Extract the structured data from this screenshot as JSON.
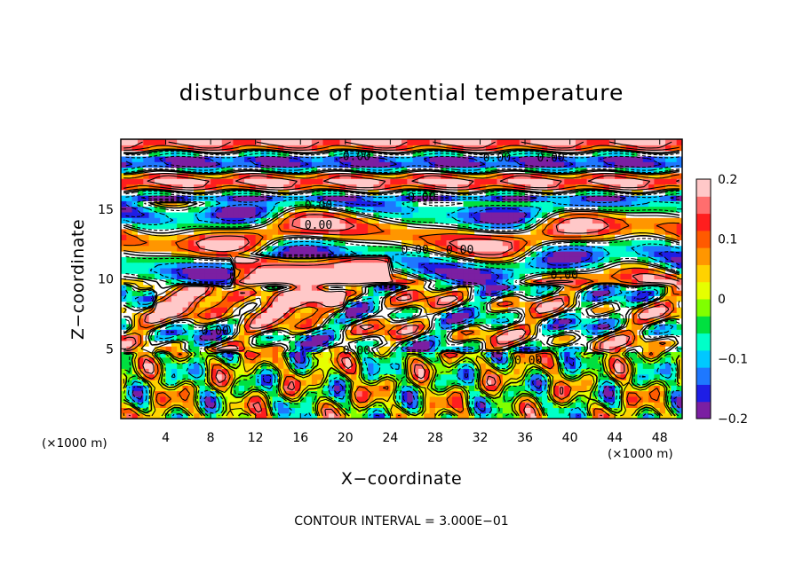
{
  "chart_data": {
    "type": "heatmap",
    "title": "disturbunce of potential temperature",
    "xlabel": "X−coordinate",
    "ylabel": "Z−coordinate",
    "x_unit": "(×1000 m)",
    "x_unit_right": "(×1000 m)",
    "xlim": [
      0,
      50
    ],
    "ylim": [
      0,
      20
    ],
    "x_ticks": [
      4,
      8,
      12,
      16,
      20,
      24,
      28,
      32,
      36,
      40,
      44,
      48
    ],
    "x_tick_labels": [
      "4",
      "8",
      "12",
      "16",
      "20",
      "24",
      "28",
      "32",
      "36",
      "40",
      "44",
      "48"
    ],
    "y_ticks": [
      5,
      10,
      15
    ],
    "y_tick_labels": [
      "5",
      "10",
      "15"
    ],
    "colorbar": {
      "min": -0.2,
      "max": 0.2,
      "ticks": [
        0.2,
        0.1,
        0,
        -0.1,
        -0.2
      ],
      "tick_labels": [
        "0.2",
        "0.1",
        "0",
        "−0.1",
        "−0.2"
      ],
      "colors": [
        "#7b1fa2",
        "#1e1ee6",
        "#1e78ff",
        "#00c8ff",
        "#00ffc8",
        "#00e040",
        "#80ff00",
        "#e6ff00",
        "#ffd200",
        "#ff9600",
        "#ff5a00",
        "#ff1e1e",
        "#ff6e6e",
        "#ffc8c8"
      ]
    },
    "contour_interval_text": "CONTOUR INTERVAL = 3.000E−01",
    "contour_labels": [
      "0.00",
      "0.00",
      "0.00",
      "0.00",
      "0.00",
      "0.00",
      "0.00",
      "0.00",
      "0.00",
      "0.00",
      "0.00",
      "0.00"
    ],
    "contour_label_positions": [
      [
        21,
        18.5
      ],
      [
        33.5,
        18.4
      ],
      [
        38.3,
        18.4
      ],
      [
        17.6,
        15.0
      ],
      [
        26.8,
        15.6
      ],
      [
        26.2,
        11.8
      ],
      [
        30.2,
        11.8
      ],
      [
        17.6,
        13.6
      ],
      [
        39.5,
        10.0
      ],
      [
        8.4,
        6.0
      ],
      [
        21.0,
        4.6
      ],
      [
        36.3,
        3.9
      ]
    ]
  }
}
